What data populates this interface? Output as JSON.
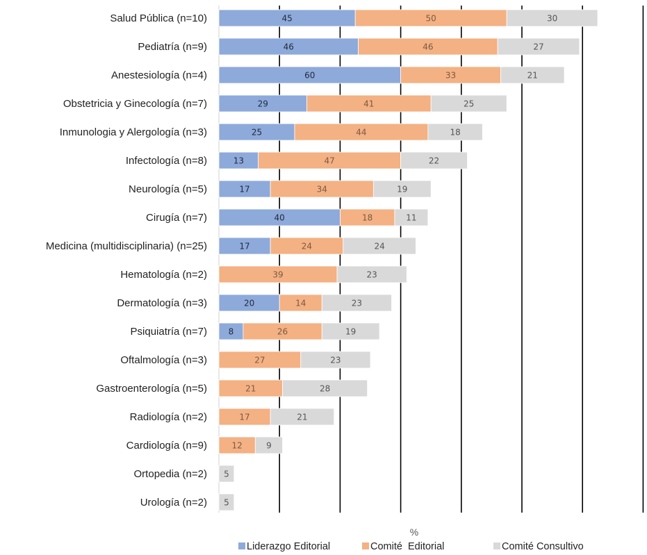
{
  "chart_data": {
    "type": "bar",
    "orientation": "horizontal",
    "stacked": true,
    "xlabel": "%",
    "grid": true,
    "legend_position": "bottom",
    "categories": [
      "Salud Pública (n=10)",
      "Pediatría (n=9)",
      "Anestesiología (n=4)",
      "Obstetricia y Ginecología (n=7)",
      "Inmunologia y Alergología (n=3)",
      "Infectología (n=8)",
      "Neurología (n=5)",
      "Cirugía (n=7)",
      "Medicina (multidisciplinaria) (n=25)",
      "Hematología (n=2)",
      "Dermatología (n=3)",
      "Psiquiatría (n=7)",
      "Oftalmología (n=3)",
      "Gastroenterología (n=5)",
      "Radiología (n=2)",
      "Cardiología (n=9)",
      "Ortopedia (n=2)",
      "Urología (n=2)"
    ],
    "series": [
      {
        "name": "Liderazgo Editorial",
        "color": "#8eaadb",
        "label_color": "#1f2a3a",
        "values": [
          45,
          46,
          60,
          29,
          25,
          13,
          17,
          40,
          17,
          0,
          20,
          8,
          0,
          0,
          0,
          0,
          0,
          0
        ]
      },
      {
        "name": "Comité  Editorial",
        "color": "#f4b183",
        "label_color": "#7a5a44",
        "values": [
          50,
          46,
          33,
          41,
          44,
          47,
          34,
          18,
          24,
          39,
          14,
          26,
          27,
          21,
          17,
          12,
          0,
          0
        ]
      },
      {
        "name": "Comité Consultivo",
        "color": "#d9d9d9",
        "label_color": "#555555",
        "values": [
          30,
          27,
          21,
          25,
          18,
          22,
          19,
          11,
          24,
          23,
          23,
          19,
          23,
          28,
          21,
          9,
          5,
          5
        ]
      }
    ],
    "xlim": [
      0,
      140
    ],
    "grid_step": 20
  }
}
